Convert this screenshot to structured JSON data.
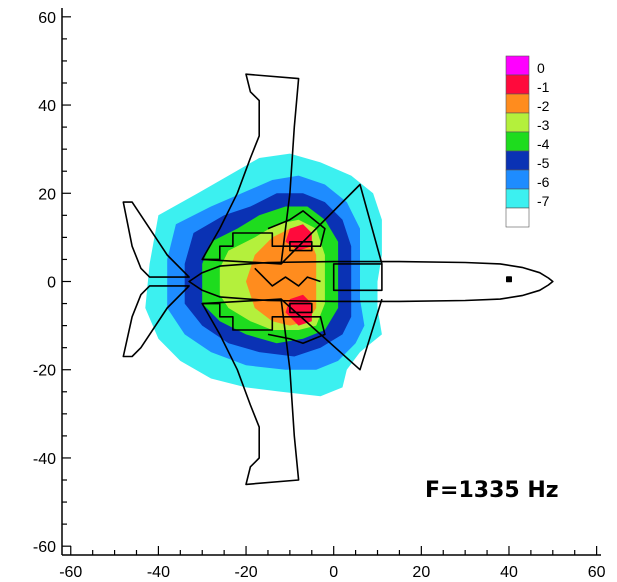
{
  "chart_data": {
    "type": "heatmap",
    "title": "",
    "xlabel": "",
    "ylabel": "",
    "xlim": [
      -62,
      61
    ],
    "ylim": [
      -62,
      62
    ],
    "x_ticks": [
      -60,
      -40,
      -20,
      0,
      20,
      40,
      60
    ],
    "y_ticks": [
      60,
      40,
      20,
      0,
      -20,
      -40,
      -60
    ],
    "grid": false,
    "annotation": "F=1335 Hz",
    "legend": {
      "placement": "top-right",
      "levels": [
        {
          "label": "0",
          "color": "#ff00ff"
        },
        {
          "label": "-1",
          "color": "#ff0a3c"
        },
        {
          "label": "-2",
          "color": "#ff8c1e"
        },
        {
          "label": "-3",
          "color": "#b4f03c"
        },
        {
          "label": "-4",
          "color": "#1edc1e"
        },
        {
          "label": "-5",
          "color": "#0a32b4"
        },
        {
          "label": "-6",
          "color": "#1e8cff"
        },
        {
          "label": "-7",
          "color": "#3cf0f0"
        },
        {
          "label": "",
          "color": "#ffffff"
        }
      ]
    },
    "contours": [
      {
        "level": "-7",
        "color": "#3cf0f0",
        "points": [
          [
            -40,
            15
          ],
          [
            -31,
            20
          ],
          [
            -24,
            24
          ],
          [
            -17,
            28
          ],
          [
            -10,
            29
          ],
          [
            -3,
            27
          ],
          [
            4,
            24
          ],
          [
            9,
            20
          ],
          [
            11,
            14
          ],
          [
            11,
            6
          ],
          [
            10,
            0
          ],
          [
            10,
            -6
          ],
          [
            11,
            -12
          ],
          [
            6,
            -16
          ],
          [
            3,
            -20
          ],
          [
            2,
            -24
          ],
          [
            -3,
            -26
          ],
          [
            -12,
            -25
          ],
          [
            -20,
            -24
          ],
          [
            -28,
            -22
          ],
          [
            -35,
            -18
          ],
          [
            -40,
            -13
          ],
          [
            -43,
            -6
          ],
          [
            -42,
            4
          ]
        ]
      },
      {
        "level": "-6",
        "color": "#1e8cff",
        "points": [
          [
            -36,
            13
          ],
          [
            -28,
            17
          ],
          [
            -21,
            20
          ],
          [
            -14,
            23
          ],
          [
            -8,
            24
          ],
          [
            -2,
            22
          ],
          [
            3,
            18
          ],
          [
            6,
            12
          ],
          [
            6,
            -4
          ],
          [
            7,
            -10
          ],
          [
            5,
            -14
          ],
          [
            1,
            -18
          ],
          [
            -4,
            -20
          ],
          [
            -11,
            -20
          ],
          [
            -20,
            -19
          ],
          [
            -28,
            -16
          ],
          [
            -34,
            -12
          ],
          [
            -38,
            -6
          ],
          [
            -38,
            5
          ]
        ]
      },
      {
        "level": "-5",
        "color": "#0a32b4",
        "points": [
          [
            -32,
            11
          ],
          [
            -25,
            15
          ],
          [
            -19,
            17
          ],
          [
            -13,
            20
          ],
          [
            -7,
            20
          ],
          [
            -2,
            18
          ],
          [
            2,
            14
          ],
          [
            4,
            8
          ],
          [
            4,
            -4
          ],
          [
            4,
            -8
          ],
          [
            2,
            -12
          ],
          [
            -3,
            -15
          ],
          [
            -9,
            -17
          ],
          [
            -17,
            -16
          ],
          [
            -24,
            -14
          ],
          [
            -30,
            -10
          ],
          [
            -34,
            -5
          ],
          [
            -34,
            4
          ]
        ]
      },
      {
        "level": "-4",
        "color": "#1edc1e",
        "points": [
          [
            -28,
            9
          ],
          [
            -22,
            12
          ],
          [
            -17,
            15
          ],
          [
            -11,
            17
          ],
          [
            -6,
            17
          ],
          [
            -2,
            14
          ],
          [
            1,
            9
          ],
          [
            1,
            -6
          ],
          [
            -2,
            -11
          ],
          [
            -7,
            -13
          ],
          [
            -13,
            -14
          ],
          [
            -20,
            -12
          ],
          [
            -26,
            -9
          ],
          [
            -30,
            -5
          ],
          [
            -30,
            4
          ]
        ]
      },
      {
        "level": "-3",
        "color": "#b4f03c",
        "points": [
          [
            -24,
            7
          ],
          [
            -18,
            10
          ],
          [
            -13,
            13
          ],
          [
            -8,
            14
          ],
          [
            -4,
            12
          ],
          [
            -2,
            6
          ],
          [
            -2,
            -5
          ],
          [
            -4,
            -10
          ],
          [
            -8,
            -11
          ],
          [
            -14,
            -11
          ],
          [
            -19,
            -9
          ],
          [
            -24,
            -6
          ],
          [
            -26,
            -3
          ],
          [
            -26,
            3
          ]
        ]
      },
      {
        "level": "-2",
        "color": "#ff8c1e",
        "points": [
          [
            -18,
            6
          ],
          [
            -14,
            10
          ],
          [
            -10,
            12
          ],
          [
            -6,
            11
          ],
          [
            -4,
            6
          ],
          [
            -4,
            -6
          ],
          [
            -6,
            -9
          ],
          [
            -10,
            -10
          ],
          [
            -14,
            -9
          ],
          [
            -18,
            -6
          ],
          [
            -20,
            0
          ]
        ]
      },
      {
        "level": "-1",
        "color": "#ff0a3c",
        "points": [
          [
            -10,
            12
          ],
          [
            -7,
            13
          ],
          [
            -5,
            11
          ],
          [
            -5,
            8
          ],
          [
            -8,
            7
          ],
          [
            -11,
            9
          ]
        ]
      },
      {
        "level": "-1",
        "color": "#ff0a3c",
        "points": [
          [
            -10,
            -4
          ],
          [
            -7,
            -3
          ],
          [
            -5,
            -5
          ],
          [
            -5,
            -9
          ],
          [
            -8,
            -10
          ],
          [
            -11,
            -7
          ]
        ]
      }
    ],
    "outline": {
      "fuselage": [
        [
          -33,
          0
        ],
        [
          -30,
          2
        ],
        [
          -26,
          3.5
        ],
        [
          -15,
          4.3
        ],
        [
          0,
          4.5
        ],
        [
          15,
          4.5
        ],
        [
          30,
          4.3
        ],
        [
          38,
          4
        ],
        [
          43,
          3.2
        ],
        [
          47,
          2
        ],
        [
          49,
          0.8
        ],
        [
          50,
          0
        ],
        [
          49,
          -0.8
        ],
        [
          47,
          -2
        ],
        [
          43,
          -3.2
        ],
        [
          38,
          -4
        ],
        [
          30,
          -4.3
        ],
        [
          15,
          -4.5
        ],
        [
          0,
          -4.5
        ],
        [
          -15,
          -4.3
        ],
        [
          -26,
          -3.5
        ],
        [
          -30,
          -2
        ],
        [
          -33,
          0
        ]
      ],
      "wing_upper": [
        [
          -12,
          4
        ],
        [
          -11,
          12
        ],
        [
          -10,
          20
        ],
        [
          -9,
          35
        ],
        [
          -8,
          46
        ],
        [
          -20,
          47
        ],
        [
          -19,
          43
        ],
        [
          -17,
          41
        ],
        [
          -17,
          33
        ],
        [
          -19,
          28
        ],
        [
          -22,
          20
        ],
        [
          -26,
          12
        ],
        [
          -30,
          5
        ]
      ],
      "wing_lower": [
        [
          -12,
          -4
        ],
        [
          -11,
          -12
        ],
        [
          -10,
          -20
        ],
        [
          -9,
          -35
        ],
        [
          -8,
          -45
        ],
        [
          -20,
          -46
        ],
        [
          -19,
          -42
        ],
        [
          -17,
          -40
        ],
        [
          -17,
          -33
        ],
        [
          -19,
          -28
        ],
        [
          -22,
          -20
        ],
        [
          -26,
          -12
        ],
        [
          -30,
          -5
        ]
      ],
      "wing_root_upper": [
        [
          -12,
          4
        ],
        [
          6,
          22
        ],
        [
          11,
          4
        ]
      ],
      "wing_root_lower": [
        [
          -12,
          -4
        ],
        [
          6,
          -20
        ],
        [
          11,
          -4
        ]
      ],
      "tail_upper": [
        [
          -33,
          1
        ],
        [
          -38,
          6
        ],
        [
          -44,
          15
        ],
        [
          -46,
          18
        ],
        [
          -48,
          18
        ],
        [
          -46,
          8
        ],
        [
          -44,
          3
        ],
        [
          -42,
          1
        ]
      ],
      "tail_lower": [
        [
          -33,
          -1
        ],
        [
          -38,
          -6
        ],
        [
          -44,
          -15
        ],
        [
          -46,
          -17
        ],
        [
          -48,
          -17
        ],
        [
          -46,
          -8
        ],
        [
          -44,
          -3
        ],
        [
          -42,
          -1
        ]
      ],
      "nacelle_upper": [
        [
          -10,
          9
        ],
        [
          -5,
          9
        ],
        [
          -5,
          7
        ],
        [
          -10,
          7
        ]
      ],
      "nacelle_lower": [
        [
          -10,
          -5
        ],
        [
          -5,
          -5
        ],
        [
          -5,
          -7
        ],
        [
          -10,
          -7
        ]
      ],
      "cabin_box": [
        [
          0,
          4
        ],
        [
          11,
          4
        ],
        [
          11,
          -2
        ],
        [
          0,
          -2
        ]
      ],
      "nose_mark": [
        [
          39.5,
          1
        ],
        [
          40.5,
          1
        ],
        [
          40.5,
          0
        ],
        [
          39.5,
          0
        ]
      ],
      "inner_upper": [
        [
          -30,
          5
        ],
        [
          -26,
          5
        ],
        [
          -26,
          8
        ],
        [
          -23,
          8
        ],
        [
          -23,
          11
        ],
        [
          -14,
          11
        ],
        [
          -14,
          8
        ],
        [
          -3,
          8
        ],
        [
          -2,
          12
        ],
        [
          -7,
          16
        ],
        [
          -10,
          14
        ],
        [
          -15,
          12
        ]
      ],
      "inner_lower": [
        [
          -30,
          -5
        ],
        [
          -26,
          -5
        ],
        [
          -26,
          -8
        ],
        [
          -23,
          -8
        ],
        [
          -23,
          -11
        ],
        [
          -14,
          -11
        ],
        [
          -14,
          -8
        ],
        [
          -3,
          -8
        ],
        [
          -2,
          -12
        ],
        [
          -7,
          -14
        ],
        [
          -10,
          -13
        ],
        [
          -15,
          -12
        ]
      ],
      "center_zig": [
        [
          -18,
          3
        ],
        [
          -14,
          -1
        ],
        [
          -11,
          1
        ],
        [
          -8,
          -1
        ],
        [
          -6,
          1
        ],
        [
          -3,
          0
        ]
      ]
    }
  }
}
